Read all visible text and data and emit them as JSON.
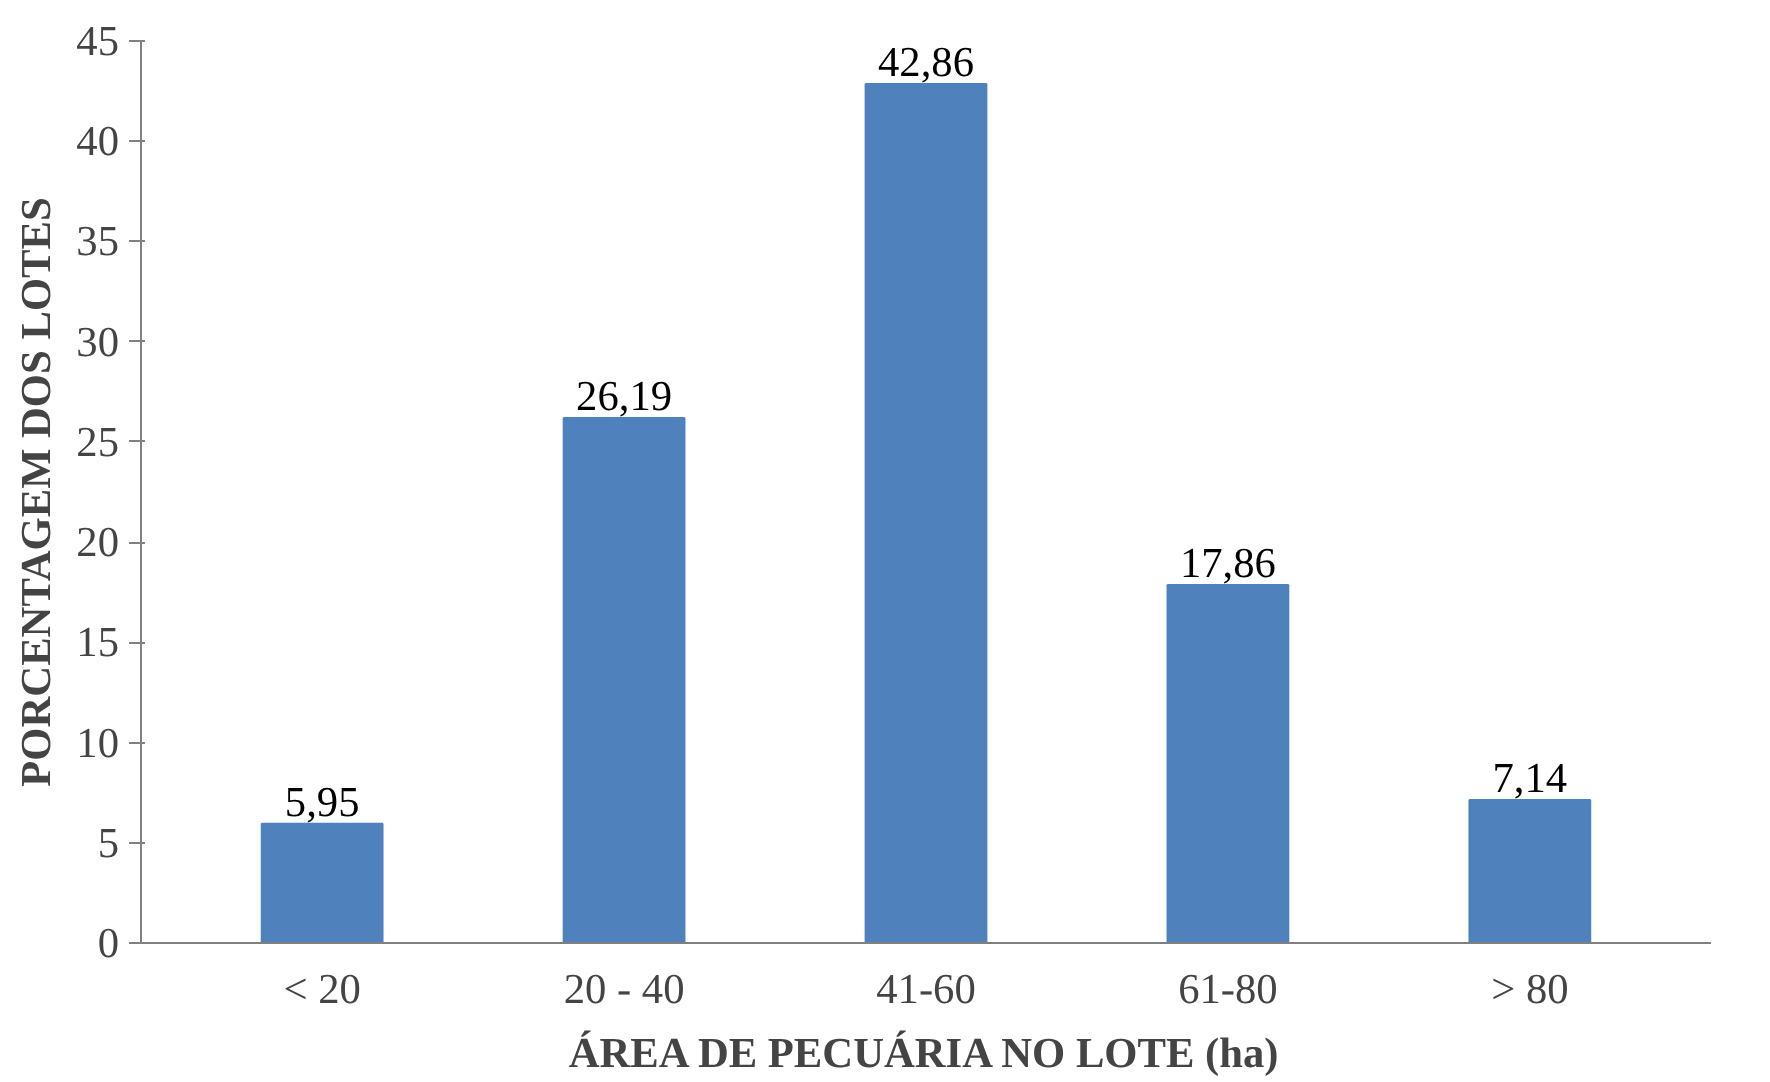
{
  "chart_data": {
    "type": "bar",
    "xlabel": "ÁREA DE PECUÁRIA NO LOTE (ha)",
    "ylabel": "PORCENTAGEM DOS LOTES",
    "categories": [
      "< 20",
      "20 - 40",
      "41-60",
      "61-80",
      "> 80"
    ],
    "values": [
      5.95,
      26.19,
      42.86,
      17.86,
      7.14
    ],
    "value_labels": [
      "5,95",
      "26,19",
      "42,86",
      "17,86",
      "7,14"
    ],
    "color": "#4f81bd",
    "ylim": [
      0,
      45
    ],
    "yticks": [
      0,
      5,
      10,
      15,
      20,
      25,
      30,
      35,
      40,
      45
    ],
    "grid": false
  }
}
